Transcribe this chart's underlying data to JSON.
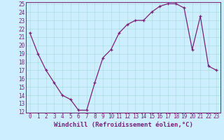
{
  "x": [
    0,
    1,
    2,
    3,
    4,
    5,
    6,
    7,
    8,
    9,
    10,
    11,
    12,
    13,
    14,
    15,
    16,
    17,
    18,
    19,
    20,
    21,
    22,
    23
  ],
  "y": [
    21.5,
    19.0,
    17.0,
    15.5,
    14.0,
    13.5,
    12.2,
    12.2,
    15.5,
    18.5,
    19.5,
    21.5,
    22.5,
    23.0,
    23.0,
    24.0,
    24.7,
    25.0,
    25.0,
    24.5,
    19.5,
    23.5,
    17.5,
    17.0
  ],
  "line_color": "#7B1F7B",
  "marker": "+",
  "marker_color": "#7B1F7B",
  "bg_color": "#cceeff",
  "grid_color": "#aadddd",
  "xlabel": "Windchill (Refroidissement éolien,°C)",
  "ylim": [
    12,
    25
  ],
  "xlim": [
    -0.5,
    23.5
  ],
  "yticks": [
    12,
    13,
    14,
    15,
    16,
    17,
    18,
    19,
    20,
    21,
    22,
    23,
    24,
    25
  ],
  "xticks": [
    0,
    1,
    2,
    3,
    4,
    5,
    6,
    7,
    8,
    9,
    10,
    11,
    12,
    13,
    14,
    15,
    16,
    17,
    18,
    19,
    20,
    21,
    22,
    23
  ],
  "tick_label_size": 5.5,
  "xlabel_size": 6.5,
  "marker_size": 3.5,
  "line_width": 0.9
}
